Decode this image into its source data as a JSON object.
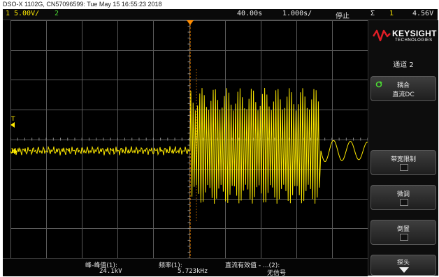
{
  "caption": "DSO-X 1102G, CN57096599: Tue May 15 16:55:23 2018",
  "topbar": {
    "ch1_num": "1",
    "ch1_scale": "5.00V/",
    "ch2_num": "2",
    "time_offset": "40.00s",
    "time_scale": "1.000s/",
    "run_state": "停止",
    "trig_icon": "trigger-edge-icon",
    "trig_symbol": "Σ",
    "trig_src": "1",
    "trig_level": "4.56V"
  },
  "colors": {
    "ch1": "#ffea00",
    "ch2": "#4cdb33",
    "trigger": "#ff8c00",
    "logo_red": "#e01e26",
    "grid": "#5a5a5a"
  },
  "markers": {
    "trigger_level": "T",
    "ch1_ground": "1"
  },
  "logo": {
    "name": "KEYSIGHT",
    "sub": "TECHNOLOGIES"
  },
  "sidebar": {
    "title": "通道 2",
    "coupling_label": "耦合",
    "coupling_value": "直流DC",
    "bw_limit_label": "带宽限制",
    "fine_label": "微调",
    "invert_label": "倒置",
    "probe_label": "探头"
  },
  "measurements": [
    {
      "label": "峰-峰值(1):",
      "value": "24.1kV"
    },
    {
      "label": "频率(1):",
      "value": "5.723kHz"
    },
    {
      "label": "直流有效值 - ...(2):",
      "value": "无信号"
    }
  ]
}
